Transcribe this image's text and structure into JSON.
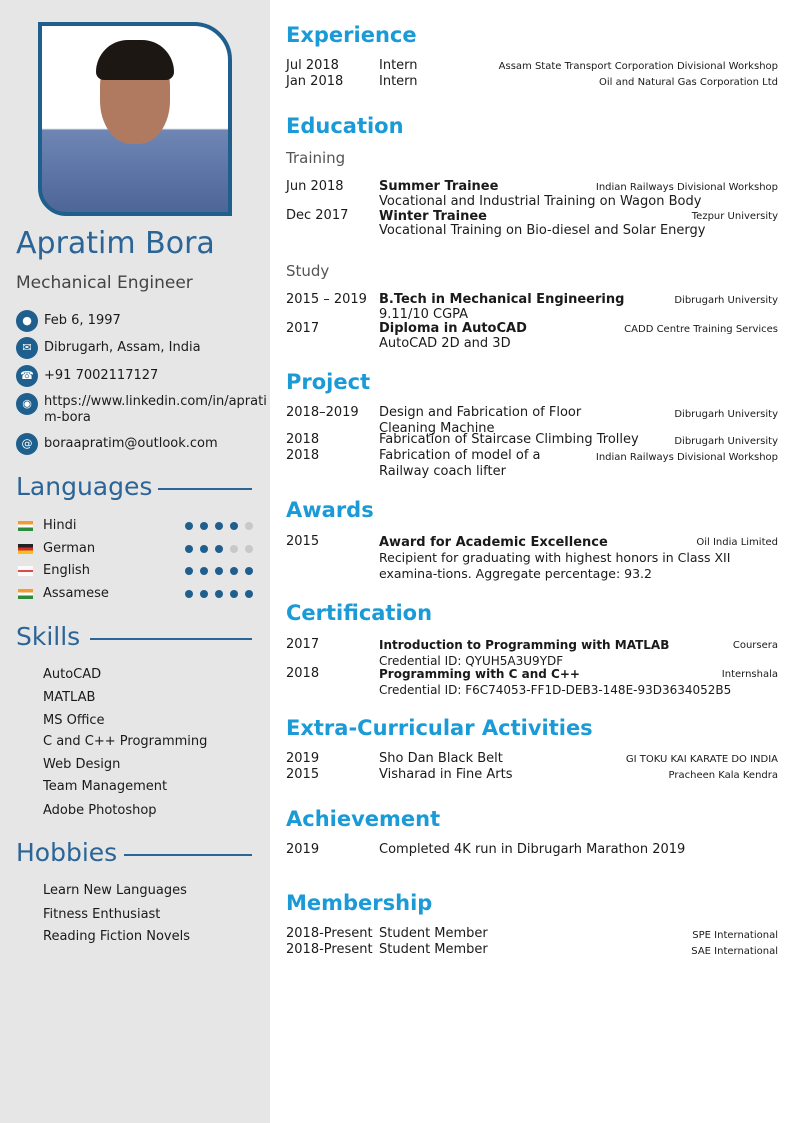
{
  "profile": {
    "name": "Apratim Bora",
    "title": "Mechanical Engineer",
    "contacts": [
      {
        "icon": "person-icon",
        "text": "Feb 6, 1997"
      },
      {
        "icon": "envelope-icon",
        "text": "Dibrugarh, Assam, India"
      },
      {
        "icon": "phone-icon",
        "text": "+91 7002117127"
      },
      {
        "icon": "globe-icon",
        "text": "https://www.linkedin.com/in/apratim-bora"
      },
      {
        "icon": "at-icon",
        "text": "boraapratim@outlook.com"
      }
    ]
  },
  "languages": {
    "heading": "Languages",
    "items": [
      {
        "name": "Hindi",
        "flag": "india",
        "level": 4
      },
      {
        "name": "German",
        "flag": "germany",
        "level": 3
      },
      {
        "name": "English",
        "flag": "uk",
        "level": 5
      },
      {
        "name": "Assamese",
        "flag": "india",
        "level": 5
      }
    ]
  },
  "skills": {
    "heading": "Skills",
    "items": [
      "AutoCAD",
      "MATLAB",
      "MS Office",
      "C and C++ Programming",
      "Web Design",
      "Team Management",
      "Adobe Photoshop"
    ]
  },
  "hobbies": {
    "heading": "Hobbies",
    "items": [
      "Learn New Languages",
      "Fitness Enthusiast",
      "Reading Fiction Novels"
    ]
  },
  "experience": {
    "heading": "Experience",
    "items": [
      {
        "date": "Jul 2018",
        "title": "Intern",
        "org": "Assam State Transport Corporation Divisional Workshop"
      },
      {
        "date": "Jan 2018",
        "title": "Intern",
        "org": "Oil and Natural Gas Corporation Ltd"
      }
    ]
  },
  "education": {
    "heading": "Education",
    "training_label": "Training",
    "training": [
      {
        "date": "Jun 2018",
        "title": "Summer Trainee",
        "org": "Indian Railways Divisional Workshop",
        "desc": "Vocational and Industrial Training on Wagon Body"
      },
      {
        "date": "Dec 2017",
        "title": "Winter Trainee",
        "org": "Tezpur University",
        "desc": "Vocational Training on Bio-diesel and Solar Energy"
      }
    ],
    "study_label": "Study",
    "study": [
      {
        "date": "2015 – 2019",
        "title": "B.Tech in Mechanical Engineering",
        "org": "Dibrugarh University",
        "desc": "9.11/10 CGPA"
      },
      {
        "date": "2017",
        "title": "Diploma in AutoCAD",
        "org": "CADD Centre Training Services",
        "desc": "AutoCAD 2D and 3D"
      }
    ]
  },
  "project": {
    "heading": "Project",
    "items": [
      {
        "date": "2018–2019",
        "title": "Design and Fabrication of Floor Cleaning Machine",
        "org": "Dibrugarh University"
      },
      {
        "date": "2018",
        "title": "Fabrication of Staircase Climbing Trolley",
        "org": "Dibrugarh University"
      },
      {
        "date": "2018",
        "title": "Fabrication of model of a Railway coach lifter",
        "org": "Indian Railways Divisional Workshop"
      }
    ]
  },
  "awards": {
    "heading": "Awards",
    "items": [
      {
        "date": "2015",
        "title": "Award for Academic Excellence",
        "org": "Oil India Limited",
        "desc": "Recipient for graduating with highest honors in Class XII examina-tions. Aggregate percentage: 93.2"
      }
    ]
  },
  "certification": {
    "heading": "Certification",
    "items": [
      {
        "date": "2017",
        "title": "Introduction to Programming with MATLAB",
        "org": "Coursera",
        "desc": "Credential ID: QYUH5A3U9YDF"
      },
      {
        "date": "2018",
        "title": "Programming with C and C++",
        "org": "Internshala",
        "desc": "Credential ID: F6C74053-FF1D-DEB3-148E-93D3634052B5"
      }
    ]
  },
  "extracurricular": {
    "heading": "Extra-Curricular Activities",
    "items": [
      {
        "date": "2019",
        "title": "Sho Dan Black Belt",
        "org": "GI TOKU KAI KARATE DO INDIA"
      },
      {
        "date": "2015",
        "title": "Visharad in Fine Arts",
        "org": "Pracheen Kala Kendra"
      }
    ]
  },
  "achievement": {
    "heading": "Achievement",
    "items": [
      {
        "date": "2019",
        "title": "Completed 4K run in Dibrugarh Marathon 2019"
      }
    ]
  },
  "membership": {
    "heading": "Membership",
    "items": [
      {
        "date": "2018-Present",
        "title": "Student Member",
        "org": "SPE International"
      },
      {
        "date": "2018-Present",
        "title": "Student Member",
        "org": "SAE International"
      }
    ]
  },
  "colors": {
    "sidebar_bg": "#e6e6e6",
    "sidebar_accent": "#2b6496",
    "heading_accent": "#1a9ad6"
  }
}
